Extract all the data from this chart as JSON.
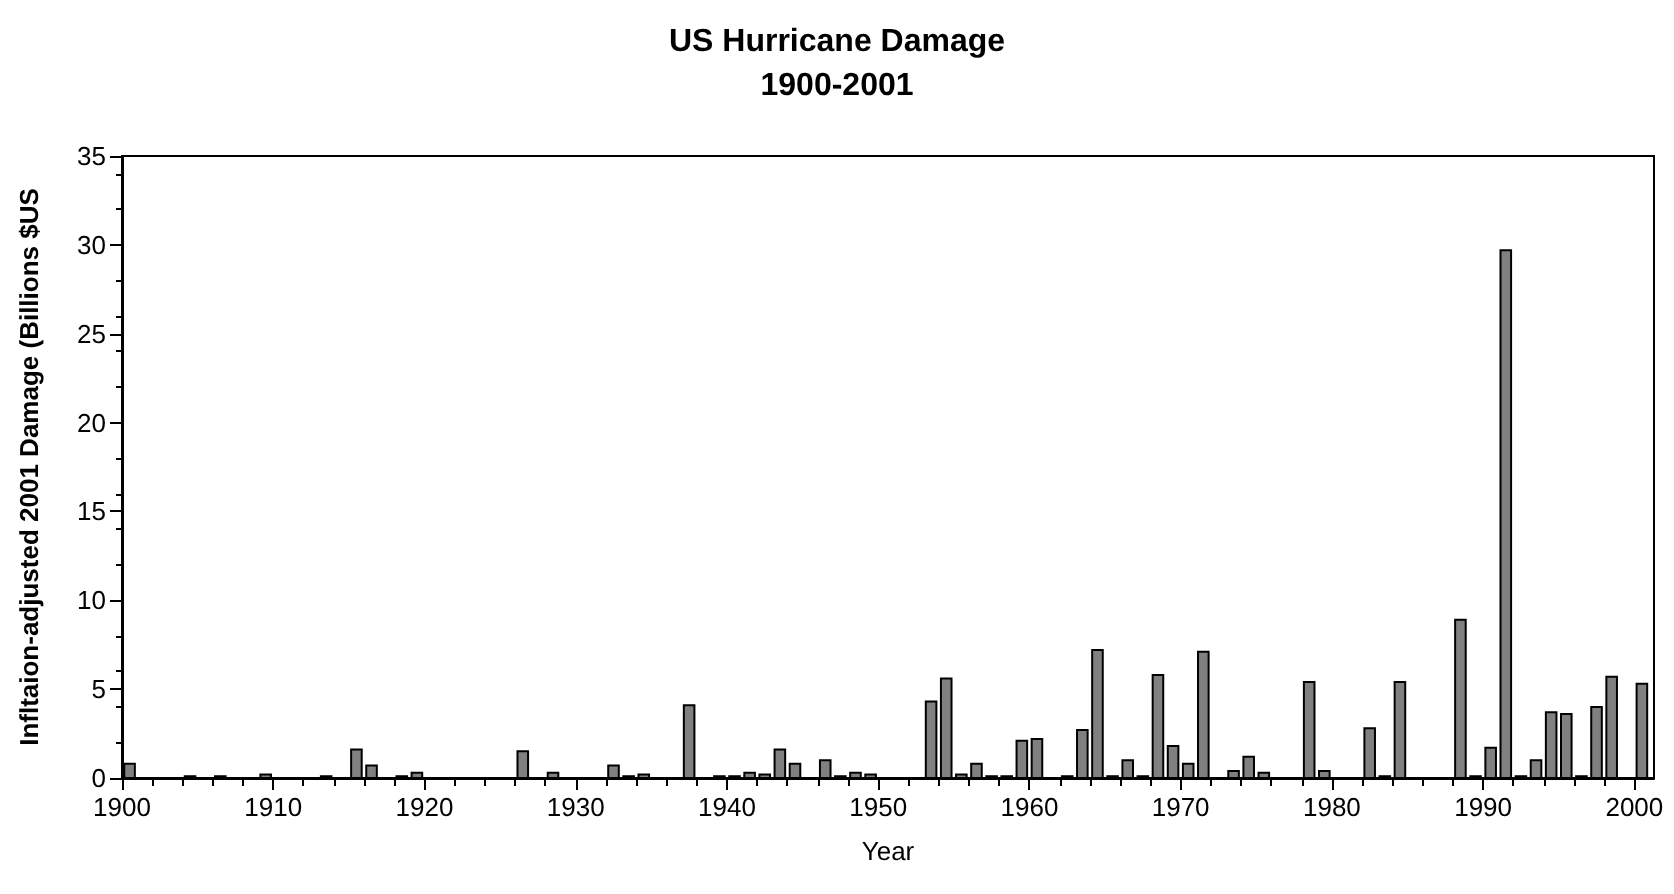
{
  "chart_data": {
    "type": "bar",
    "title": "US Hurricane Damage",
    "subtitle": "1900-2001",
    "xlabel": "Year",
    "ylabel": "Infltaion-adjusted 2001 Damage (Billions $US",
    "x": [
      1900,
      1904,
      1906,
      1909,
      1913,
      1915,
      1916,
      1918,
      1919,
      1926,
      1928,
      1932,
      1933,
      1934,
      1937,
      1939,
      1940,
      1941,
      1942,
      1943,
      1944,
      1946,
      1947,
      1948,
      1949,
      1953,
      1954,
      1955,
      1956,
      1957,
      1958,
      1959,
      1960,
      1962,
      1963,
      1964,
      1965,
      1966,
      1967,
      1968,
      1969,
      1970,
      1971,
      1973,
      1974,
      1975,
      1978,
      1979,
      1982,
      1983,
      1984,
      1988,
      1989,
      1990,
      1991,
      1992,
      1993,
      1994,
      1995,
      1996,
      1997,
      1998,
      2000
    ],
    "values": [
      0.8,
      0.1,
      0.1,
      0.2,
      0.1,
      1.6,
      0.7,
      0.1,
      0.3,
      1.5,
      0.3,
      0.7,
      0.1,
      0.2,
      4.1,
      0.1,
      0.1,
      0.3,
      0.2,
      1.6,
      0.8,
      1.0,
      0.1,
      0.3,
      0.2,
      4.3,
      5.6,
      0.2,
      0.8,
      0.1,
      0.1,
      2.1,
      2.2,
      0.1,
      2.7,
      7.2,
      0.1,
      1.0,
      0.1,
      5.8,
      1.8,
      0.8,
      7.1,
      0.4,
      1.2,
      0.3,
      5.4,
      0.4,
      2.8,
      0.1,
      5.4,
      8.9,
      0.1,
      1.7,
      29.7,
      0.1,
      1.0,
      3.7,
      3.6,
      0.1,
      4.0,
      5.7,
      5.3
    ],
    "color": "#808080",
    "xlim": [
      1900,
      2001.3
    ],
    "xticks": [
      1900,
      1910,
      1920,
      1930,
      1940,
      1950,
      1960,
      1970,
      1980,
      1990,
      2000
    ],
    "ylim": [
      0,
      35
    ],
    "yticks": [
      0,
      5,
      10,
      15,
      20,
      25,
      30,
      35
    ],
    "grid": false
  }
}
